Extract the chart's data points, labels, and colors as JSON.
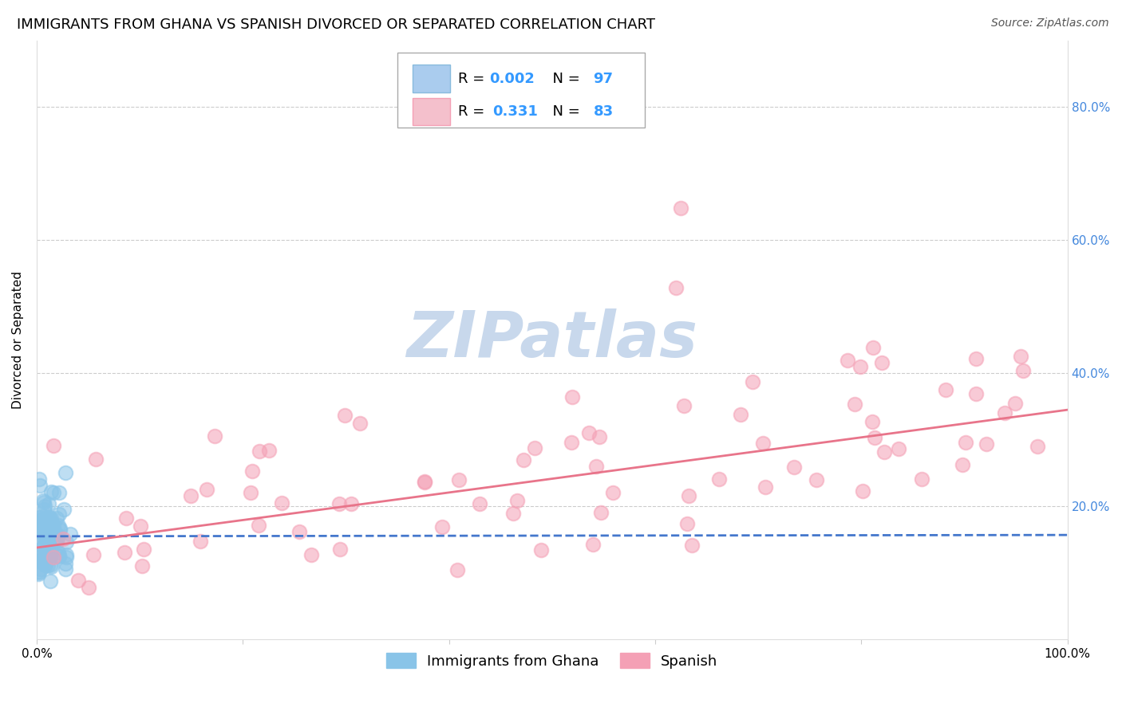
{
  "title": "IMMIGRANTS FROM GHANA VS SPANISH DIVORCED OR SEPARATED CORRELATION CHART",
  "source": "Source: ZipAtlas.com",
  "ylabel": "Divorced or Separated",
  "legend_bottom": [
    "Immigrants from Ghana",
    "Spanish"
  ],
  "r_ghana": 0.002,
  "n_ghana": 97,
  "r_spanish": 0.331,
  "n_spanish": 83,
  "xlim": [
    0.0,
    1.0
  ],
  "ylim": [
    0.0,
    0.9
  ],
  "xticks": [
    0.0,
    0.2,
    0.4,
    0.6,
    0.8,
    1.0
  ],
  "yticks": [
    0.2,
    0.4,
    0.6,
    0.8
  ],
  "xtick_labels": [
    "0.0%",
    "",
    "",
    "",
    "",
    "100.0%"
  ],
  "ytick_labels_right": [
    "20.0%",
    "40.0%",
    "60.0%",
    "80.0%"
  ],
  "color_ghana": "#89C4E8",
  "color_spanish": "#F4A0B5",
  "line_color_ghana": "#4477CC",
  "line_color_spanish": "#E8748A",
  "watermark_text": "ZIPatlas",
  "watermark_color": "#C8D8EC",
  "bg_color": "#FFFFFF",
  "grid_color": "#CCCCCC",
  "title_fontsize": 13,
  "source_fontsize": 10,
  "axis_label_fontsize": 11,
  "tick_fontsize": 11,
  "legend_fontsize": 13,
  "seed_ghana": 42,
  "seed_spanish": 99
}
